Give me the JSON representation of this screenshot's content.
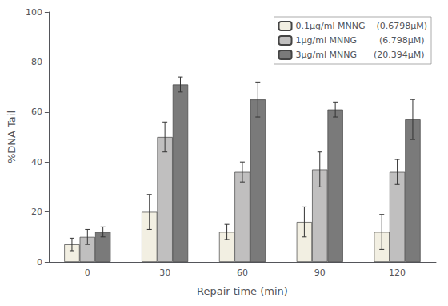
{
  "chart_data": {
    "type": "bar",
    "xlabel": "Repair time (min)",
    "ylabel": "%DNA Tail",
    "categories": [
      "0",
      "30",
      "60",
      "90",
      "120"
    ],
    "series": [
      {
        "name": "0.1μg/ml MNNG    (0.6798μM)",
        "color": "#f2efe2",
        "values": [
          7,
          20,
          12,
          16,
          12
        ],
        "errors": [
          2.5,
          7,
          3,
          6,
          7
        ]
      },
      {
        "name": "1μg/ml MNNG        (6.798μM)",
        "color": "#c0bfbf",
        "values": [
          10,
          50,
          36,
          37,
          36
        ],
        "errors": [
          3,
          6,
          4,
          7,
          5
        ]
      },
      {
        "name": "3μg/ml MNNG      (20.394μM)",
        "color": "#7a7a7a",
        "values": [
          12,
          71,
          65,
          61,
          57
        ],
        "errors": [
          2,
          3,
          7,
          3,
          8
        ]
      }
    ],
    "ylim": [
      0,
      100
    ],
    "yticks": [
      0,
      20,
      40,
      60,
      80,
      100
    ],
    "grid": false,
    "legend": "upper right"
  }
}
